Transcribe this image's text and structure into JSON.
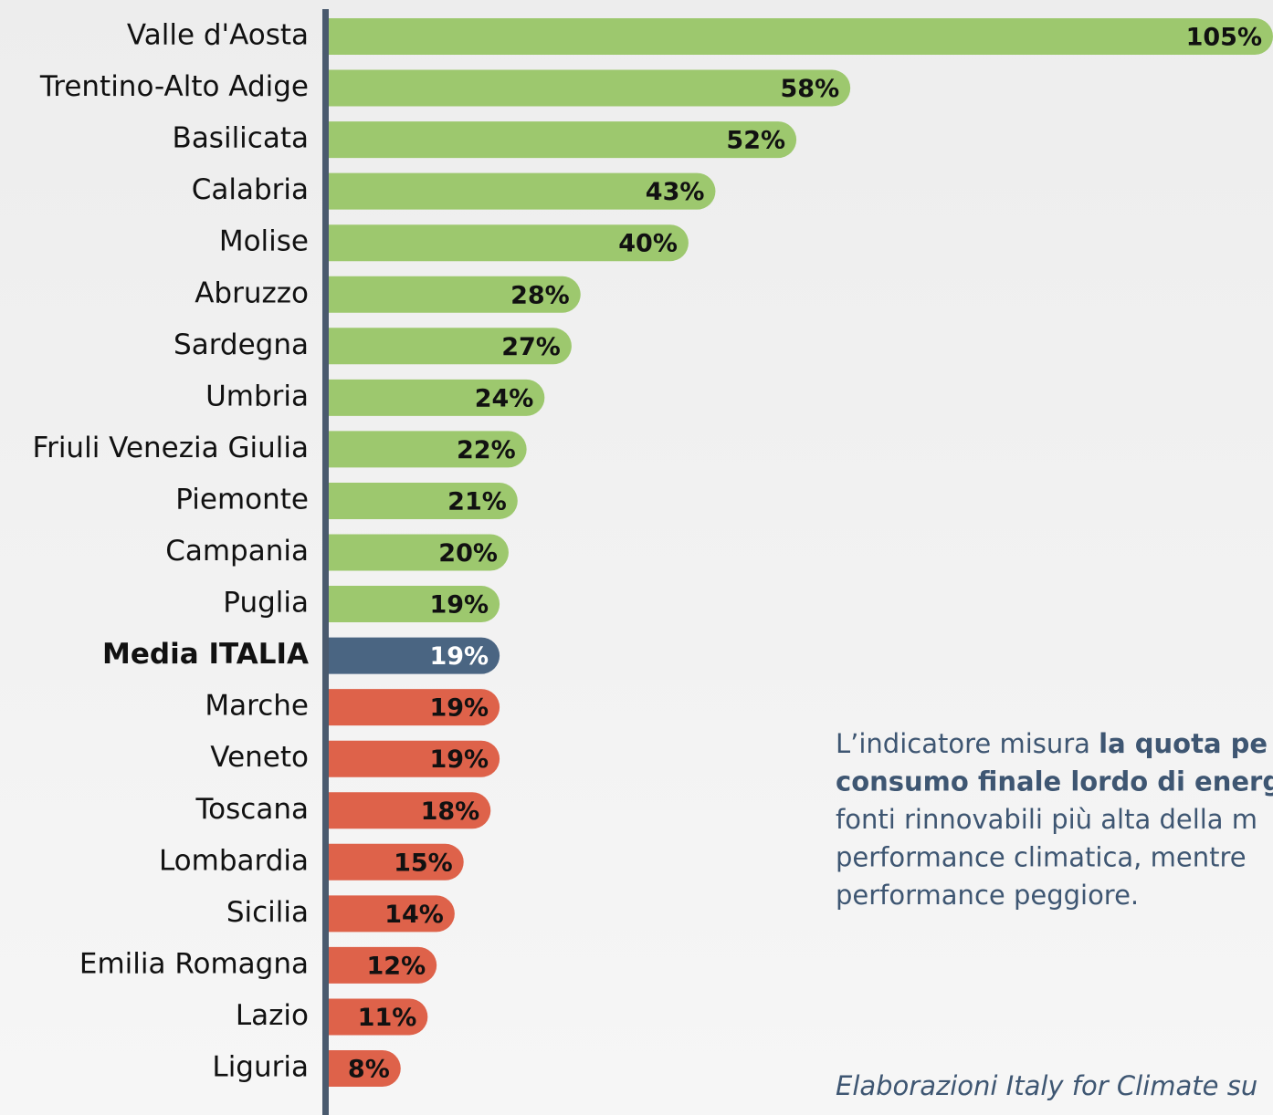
{
  "chart_data": {
    "type": "hbar",
    "categories": [
      "Valle d'Aosta",
      "Trentino-Alto Adige",
      "Basilicata",
      "Calabria",
      "Molise",
      "Abruzzo",
      "Sardegna",
      "Umbria",
      "Friuli Venezia Giulia",
      "Piemonte",
      "Campania",
      "Puglia",
      "Media ITALIA",
      "Marche",
      "Veneto",
      "Toscana",
      "Lombardia",
      "Sicilia",
      "Emilia Romagna",
      "Lazio",
      "Liguria"
    ],
    "values": [
      105,
      58,
      52,
      43,
      40,
      28,
      27,
      24,
      22,
      21,
      20,
      19,
      19,
      19,
      19,
      18,
      15,
      14,
      12,
      11,
      8
    ],
    "value_labels": [
      "105%",
      "58%",
      "52%",
      "43%",
      "40%",
      "28%",
      "27%",
      "24%",
      "22%",
      "21%",
      "20%",
      "19%",
      "19%",
      "19%",
      "19%",
      "18%",
      "15%",
      "14%",
      "12%",
      "11%",
      "8%"
    ],
    "colors": [
      "#9dc86e",
      "#9dc86e",
      "#9dc86e",
      "#9dc86e",
      "#9dc86e",
      "#9dc86e",
      "#9dc86e",
      "#9dc86e",
      "#9dc86e",
      "#9dc86e",
      "#9dc86e",
      "#9dc86e",
      "#4a6582",
      "#de624a",
      "#de624a",
      "#de624a",
      "#de624a",
      "#de624a",
      "#de624a",
      "#de624a",
      "#de624a"
    ],
    "highlight": "Media ITALIA",
    "xlim": [
      0,
      105
    ],
    "annotation": [
      [
        {
          "text": "L’indicatore misura ",
          "bold": false
        },
        {
          "text": "la quota pe",
          "bold": true
        }
      ],
      [
        {
          "text": "consumo finale lordo di energ",
          "bold": true
        }
      ],
      [
        {
          "text": "fonti rinnovabili più alta della m",
          "bold": false
        }
      ],
      [
        {
          "text": "performance climatica, mentre",
          "bold": false
        }
      ],
      [
        {
          "text": "performance peggiore.",
          "bold": false
        }
      ]
    ],
    "source": "Elaborazioni Italy for Climate su"
  }
}
